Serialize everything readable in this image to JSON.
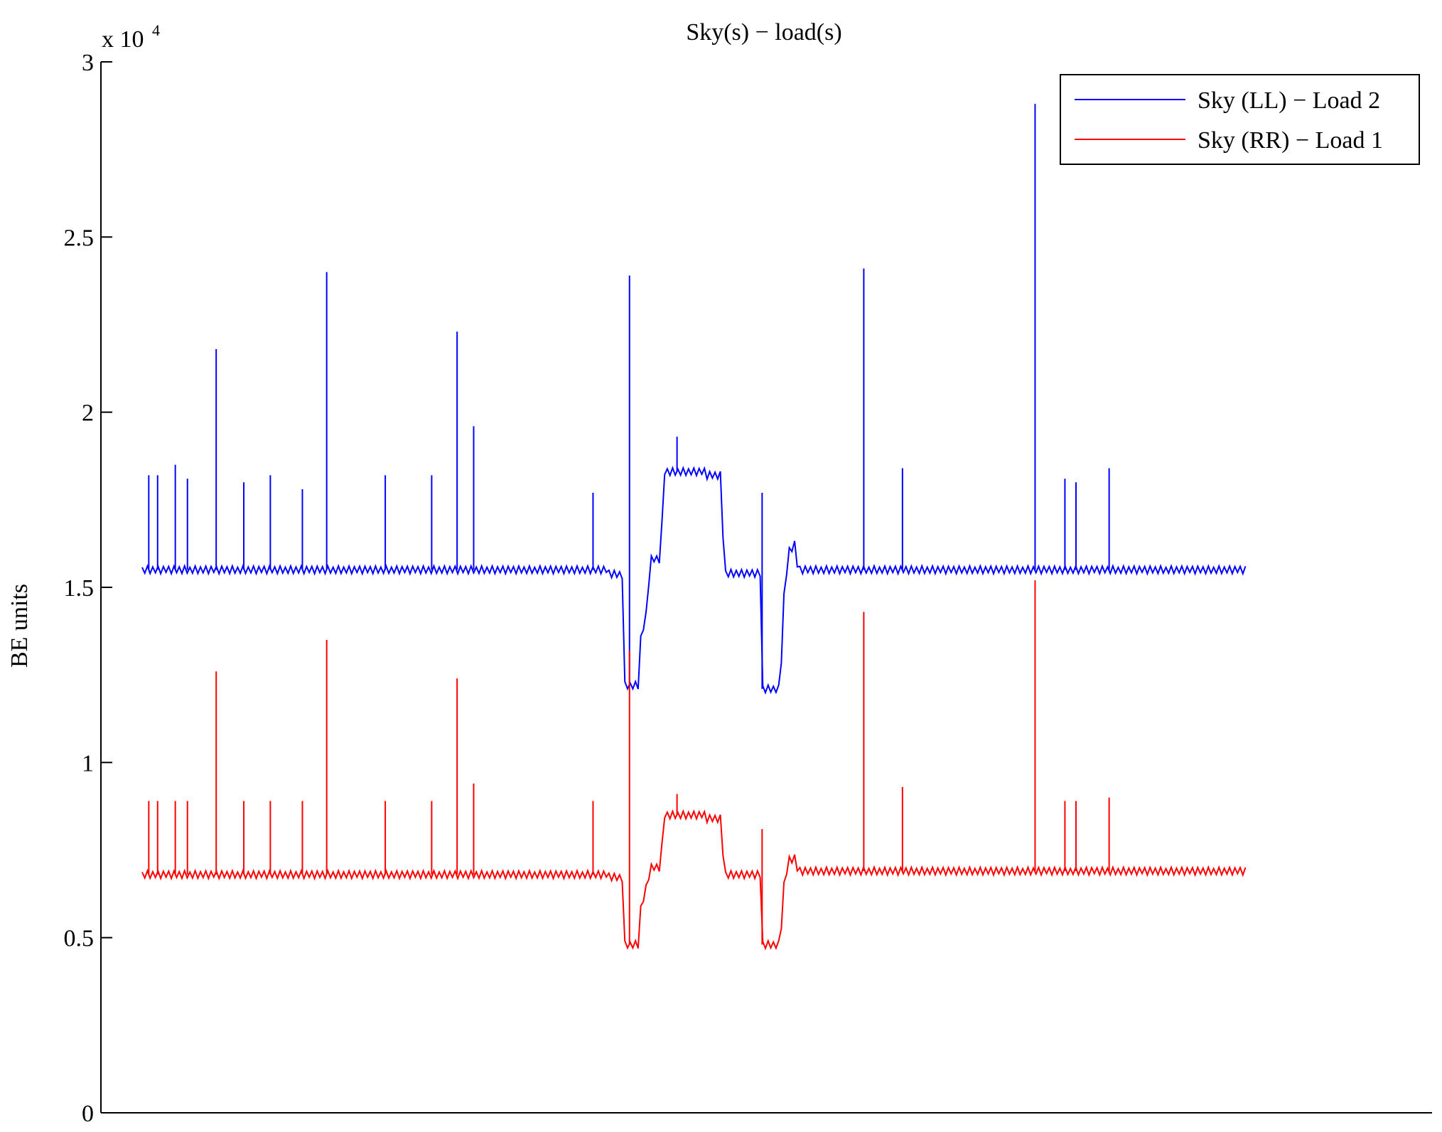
{
  "chart_data": {
    "type": "line",
    "title": "Sky(s) − load(s)",
    "ylabel": "BE units",
    "xlabel": "",
    "y_multiplier": "x 10",
    "y_multiplier_exponent": "4",
    "ylim": [
      0,
      30000
    ],
    "yticks": [
      0,
      5000,
      10000,
      15000,
      20000,
      25000,
      30000
    ],
    "ytick_labels": [
      "0",
      "0.5",
      "1",
      "1.5",
      "2",
      "2.5",
      "3"
    ],
    "xlim": [
      0,
      1000
    ],
    "legend_position": "top-right",
    "series": [
      {
        "name": "Sky (LL) − Load 2",
        "color": "#0000ff",
        "baseline": [
          [
            0,
            15500
          ],
          [
            420,
            15500
          ],
          [
            421,
            15400
          ],
          [
            435,
            15350
          ],
          [
            436,
            12200
          ],
          [
            450,
            12200
          ],
          [
            451,
            13500
          ],
          [
            456,
            14200
          ],
          [
            460,
            15800
          ],
          [
            470,
            15800
          ],
          [
            471,
            18300
          ],
          [
            510,
            18300
          ],
          [
            511,
            18200
          ],
          [
            525,
            18200
          ],
          [
            526,
            15400
          ],
          [
            560,
            15400
          ],
          [
            561,
            12100
          ],
          [
            578,
            12100
          ],
          [
            579,
            14200
          ],
          [
            585,
            16000
          ],
          [
            592,
            16300
          ],
          [
            593,
            15500
          ],
          [
            1000,
            15500
          ]
        ],
        "spikes": [
          [
            6,
            18200
          ],
          [
            14,
            18200
          ],
          [
            30,
            18500
          ],
          [
            41,
            18100
          ],
          [
            67,
            21800
          ],
          [
            92,
            18000
          ],
          [
            116,
            18200
          ],
          [
            145,
            17800
          ],
          [
            167,
            24000
          ],
          [
            220,
            18200
          ],
          [
            262,
            18200
          ],
          [
            285,
            22300
          ],
          [
            300,
            19600
          ],
          [
            408,
            17700
          ],
          [
            441,
            23900
          ],
          [
            484,
            19300
          ],
          [
            561,
            17700
          ],
          [
            653,
            24100
          ],
          [
            688,
            18400
          ],
          [
            808,
            28800
          ],
          [
            835,
            18100
          ],
          [
            845,
            18000
          ],
          [
            875,
            18400
          ]
        ]
      },
      {
        "name": "Sky (RR) − Load 1",
        "color": "#ff0000",
        "baseline": [
          [
            0,
            6800
          ],
          [
            420,
            6800
          ],
          [
            421,
            6750
          ],
          [
            435,
            6700
          ],
          [
            436,
            4800
          ],
          [
            450,
            4800
          ],
          [
            451,
            5800
          ],
          [
            456,
            6400
          ],
          [
            460,
            7000
          ],
          [
            470,
            7000
          ],
          [
            471,
            8500
          ],
          [
            510,
            8500
          ],
          [
            511,
            8400
          ],
          [
            525,
            8400
          ],
          [
            526,
            6800
          ],
          [
            560,
            6800
          ],
          [
            561,
            4800
          ],
          [
            578,
            4800
          ],
          [
            579,
            6200
          ],
          [
            585,
            7200
          ],
          [
            592,
            7300
          ],
          [
            593,
            6900
          ],
          [
            1000,
            6900
          ]
        ],
        "spikes": [
          [
            6,
            8900
          ],
          [
            14,
            8900
          ],
          [
            30,
            8900
          ],
          [
            41,
            8900
          ],
          [
            67,
            12600
          ],
          [
            92,
            8900
          ],
          [
            116,
            8900
          ],
          [
            145,
            8900
          ],
          [
            167,
            13500
          ],
          [
            220,
            8900
          ],
          [
            262,
            8900
          ],
          [
            285,
            12400
          ],
          [
            300,
            9400
          ],
          [
            408,
            8900
          ],
          [
            441,
            13200
          ],
          [
            484,
            9100
          ],
          [
            561,
            8100
          ],
          [
            653,
            14300
          ],
          [
            688,
            9300
          ],
          [
            808,
            15200
          ],
          [
            835,
            8900
          ],
          [
            845,
            8900
          ],
          [
            875,
            9000
          ]
        ]
      }
    ]
  }
}
